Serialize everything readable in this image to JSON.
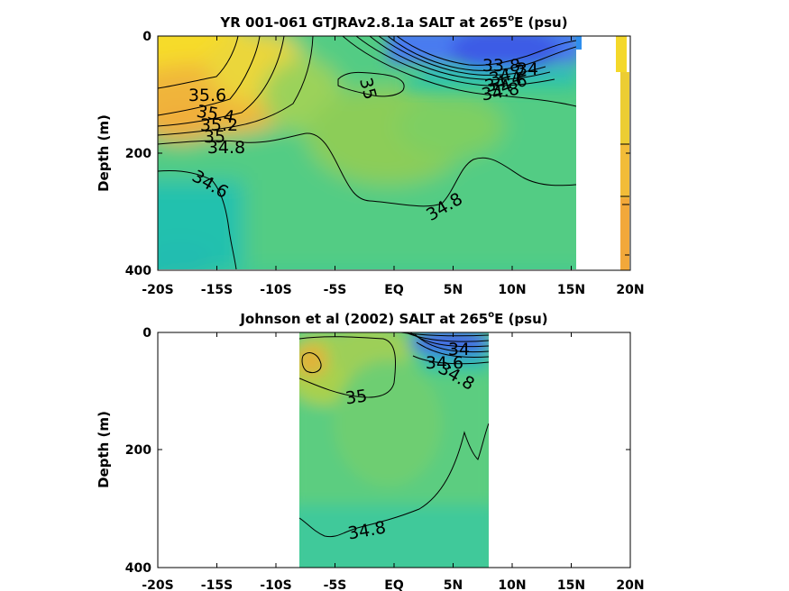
{
  "chart_data": [
    {
      "type": "contour",
      "title": "YR 001-061 GTJRAv2.8.1a SALT at 265",
      "title_sup": "o",
      "title_tail": "E (psu)",
      "xlabel": "",
      "ylabel": "Depth (m)",
      "xlim": [
        -20,
        20
      ],
      "ylim": [
        400,
        0
      ],
      "xticks": [
        -20,
        -15,
        -10,
        -5,
        0,
        5,
        10,
        15,
        20
      ],
      "xticklabels": [
        "-20S",
        "-15S",
        "-10S",
        "-5S",
        "EQ",
        "5N",
        "10N",
        "15N",
        "20N"
      ],
      "yticks": [
        0,
        200,
        400
      ],
      "yticklabels": [
        "0",
        "200",
        "400"
      ],
      "data_xrange": [
        -20,
        15.5
      ],
      "contour_labels": [
        {
          "text": "35.6",
          "x": -15.7,
          "y": 105
        },
        {
          "text": "35.4",
          "x": -15.2,
          "y": 136
        },
        {
          "text": "35.2",
          "x": -14.7,
          "y": 148
        },
        {
          "text": "35",
          "x": -15.0,
          "y": 160
        },
        {
          "text": "34.8",
          "x": -13.4,
          "y": 188
        },
        {
          "text": "34.6",
          "x": -15.7,
          "y": 258
        },
        {
          "text": "35",
          "x": -1.4,
          "y": 90
        },
        {
          "text": "34.8",
          "x": 2.3,
          "y": 293
        },
        {
          "text": "33.8",
          "x": 9.2,
          "y": 52
        },
        {
          "text": "34",
          "x": 10.3,
          "y": 61
        },
        {
          "text": "34.2",
          "x": 9.7,
          "y": 73
        },
        {
          "text": "34.4",
          "x": 9.2,
          "y": 82
        },
        {
          "text": "34.6",
          "x": 9.4,
          "y": 92
        },
        {
          "text": "34.8",
          "x": 9.0,
          "y": 104
        }
      ]
    },
    {
      "type": "contour",
      "title": "Johnson et al (2002) SALT at 265",
      "title_sup": "o",
      "title_tail": "E (psu)",
      "xlabel": "",
      "ylabel": "Depth (m)",
      "xlim": [
        -20,
        20
      ],
      "ylim": [
        400,
        0
      ],
      "xticks": [
        -20,
        -15,
        -10,
        -5,
        0,
        5,
        10,
        15,
        20
      ],
      "xticklabels": [
        "-20S",
        "-15S",
        "-10S",
        "-5S",
        "EQ",
        "5N",
        "10N",
        "15N",
        "20N"
      ],
      "yticks": [
        0,
        200,
        400
      ],
      "yticklabels": [
        "0",
        "200",
        "400"
      ],
      "data_xrange": [
        -8,
        8
      ],
      "contour_labels": [
        {
          "text": "34",
          "x": 5.8,
          "y": 32
        },
        {
          "text": "34.6",
          "x": 4.2,
          "y": 50
        },
        {
          "text": "34.8",
          "x": 5.0,
          "y": 82
        },
        {
          "text": "35",
          "x": -1.5,
          "y": 112
        },
        {
          "text": "34.8",
          "x": -1.0,
          "y": 336
        }
      ]
    }
  ]
}
